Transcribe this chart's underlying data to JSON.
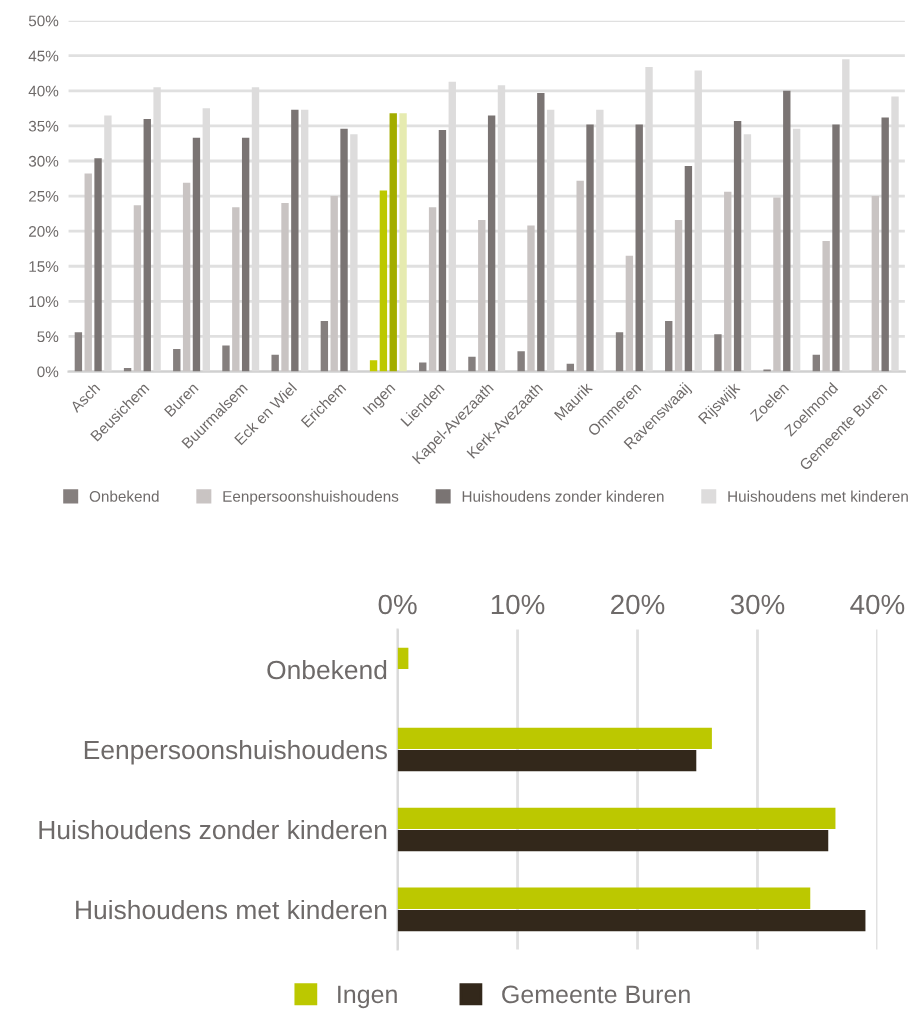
{
  "chart_data": [
    {
      "type": "bar",
      "categories": [
        "Asch",
        "Beusichem",
        "Buren",
        "Buurmalsem",
        "Eck en Wiel",
        "Erichem",
        "Ingen",
        "Lienden",
        "Kapel-Avezaath",
        "Kerk-Avezaath",
        "Maurik",
        "Ommeren",
        "Ravenswaaij",
        "Rijswijk",
        "Zoelen",
        "Zoelmond",
        "Gemeente Buren"
      ],
      "series": [
        {
          "name": "Onbekend",
          "color": "#857f7e",
          "colors": [
            "#857f7e",
            "#857f7e",
            "#857f7e",
            "#857f7e",
            "#857f7e",
            "#857f7e",
            "#c2cb00",
            "#857f7e",
            "#857f7e",
            "#857f7e",
            "#857f7e",
            "#857f7e",
            "#857f7e",
            "#857f7e",
            "#857f7e",
            "#857f7e",
            "#857f7e"
          ],
          "values": [
            5.6,
            0.5,
            3.2,
            3.7,
            2.4,
            7.2,
            1.6,
            1.3,
            2.1,
            2.9,
            1.1,
            5.6,
            7.2,
            5.3,
            0.3,
            2.4,
            0
          ]
        },
        {
          "name": "Eenpersoonshuishoudens",
          "color": "#c9c4c3",
          "colors": [
            "#c9c4c3",
            "#c9c4c3",
            "#c9c4c3",
            "#c9c4c3",
            "#c9c4c3",
            "#c9c4c3",
            "#bcc800",
            "#c9c4c3",
            "#c9c4c3",
            "#c9c4c3",
            "#c9c4c3",
            "#c9c4c3",
            "#c9c4c3",
            "#c9c4c3",
            "#c9c4c3",
            "#c9c4c3",
            "#c9c4c3"
          ],
          "values": [
            28.2,
            23.7,
            26.9,
            23.4,
            24.0,
            25.0,
            25.8,
            23.4,
            21.6,
            20.8,
            27.2,
            16.5,
            21.6,
            25.6,
            24.8,
            18.6,
            25.0
          ]
        },
        {
          "name": "Huishoudens zonder kinderen",
          "color": "#7a7473",
          "colors": [
            "#7a7473",
            "#7a7473",
            "#7a7473",
            "#7a7473",
            "#7a7473",
            "#7a7473",
            "#a3ad00",
            "#7a7473",
            "#7a7473",
            "#7a7473",
            "#7a7473",
            "#7a7473",
            "#7a7473",
            "#7a7473",
            "#7a7473",
            "#7a7473",
            "#7a7473"
          ],
          "values": [
            30.4,
            36.0,
            33.3,
            33.3,
            37.3,
            34.6,
            36.8,
            34.4,
            36.5,
            39.7,
            35.2,
            35.2,
            29.3,
            35.7,
            40.0,
            35.2,
            36.2
          ]
        },
        {
          "name": "Huishoudens met kinderen",
          "color": "#dddcdc",
          "colors": [
            "#dddcdc",
            "#dddcdc",
            "#dddcdc",
            "#dddcdc",
            "#dddcdc",
            "#dddcdc",
            "#e6ebb0",
            "#dddcdc",
            "#dddcdc",
            "#dddcdc",
            "#dddcdc",
            "#dddcdc",
            "#dddcdc",
            "#dddcdc",
            "#dddcdc",
            "#dddcdc",
            "#dddcdc"
          ],
          "values": [
            36.5,
            40.5,
            37.5,
            40.5,
            37.3,
            33.8,
            36.8,
            41.3,
            40.8,
            37.3,
            37.3,
            43.4,
            42.9,
            33.8,
            34.6,
            44.5,
            39.2
          ]
        }
      ],
      "ylim": [
        0,
        50
      ],
      "yticks": [
        {
          "value": 0,
          "label": "0%"
        },
        {
          "value": 5,
          "label": "5%"
        },
        {
          "value": 10,
          "label": "10%"
        },
        {
          "value": 15,
          "label": "15%"
        },
        {
          "value": 20,
          "label": "20%"
        },
        {
          "value": 25,
          "label": "25%"
        },
        {
          "value": 30,
          "label": "30%"
        },
        {
          "value": 35,
          "label": "35%"
        },
        {
          "value": 40,
          "label": "40%"
        },
        {
          "value": 45,
          "label": "45%"
        },
        {
          "value": 50,
          "label": "50%"
        }
      ],
      "grid": "y",
      "legend": "bottom"
    },
    {
      "type": "bar",
      "orientation": "horizontal",
      "categories": [
        "Onbekend",
        "Eenpersoonshuishoudens",
        "Huishoudens zonder kinderen",
        "Huishoudens met kinderen"
      ],
      "series": [
        {
          "name": "Ingen",
          "color": "#bcc800",
          "values": [
            0.9,
            26.2,
            36.5,
            34.4
          ]
        },
        {
          "name": "Gemeente Buren",
          "color": "#33281b",
          "values": [
            0,
            24.9,
            35.9,
            39.0
          ]
        }
      ],
      "xlim": [
        0,
        40
      ],
      "xticks": [
        {
          "value": 0,
          "label": "0%"
        },
        {
          "value": 10,
          "label": "10%"
        },
        {
          "value": 20,
          "label": "20%"
        },
        {
          "value": 30,
          "label": "30%"
        },
        {
          "value": 40,
          "label": "40%"
        }
      ],
      "grid": "x",
      "legend": "bottom"
    }
  ]
}
